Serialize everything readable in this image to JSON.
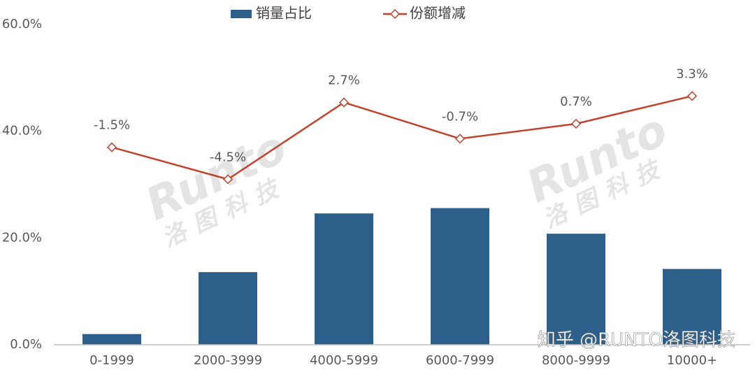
{
  "chart_data": {
    "type": "bar_line",
    "categories": [
      "0-1999",
      "2000-3999",
      "4000-5999",
      "6000-7999",
      "8000-9999",
      "10000+"
    ],
    "series": [
      {
        "name": "销量占比",
        "type": "bar",
        "color": "#2d5f8b",
        "values": [
          2.0,
          13.6,
          24.6,
          25.6,
          20.8,
          14.2
        ]
      },
      {
        "name": "份额增减",
        "type": "line",
        "axis": "y2",
        "color": "#c2432c",
        "values": [
          -1.5,
          -4.5,
          2.7,
          -0.7,
          0.7,
          3.3
        ],
        "value_labels": [
          "-1.5%",
          "-4.5%",
          "2.7%",
          "-0.7%",
          "0.7%",
          "3.3%"
        ]
      }
    ],
    "ylim": [
      0,
      60
    ],
    "yticks": [
      {
        "value": 0,
        "label": "0.0%"
      },
      {
        "value": 20,
        "label": "20.0%"
      },
      {
        "value": 40,
        "label": "40.0%"
      },
      {
        "value": 60,
        "label": "60.0%"
      }
    ],
    "y2lim": [
      -20,
      10
    ],
    "grid": false,
    "legend": "top"
  },
  "watermarks": {
    "corner": "知乎 @RUNTO洛图科技",
    "logo": "Runto",
    "logo_cn": "洛图科技"
  }
}
